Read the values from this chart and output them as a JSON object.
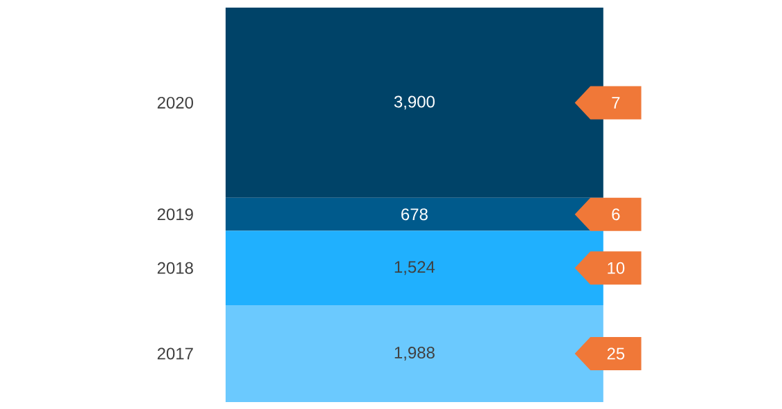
{
  "chart_data": {
    "type": "bar",
    "stacked": true,
    "categories": [
      null
    ],
    "series": [
      {
        "name": "2017",
        "color": "#6bc9fe",
        "values": [
          1988
        ],
        "value_labels": [
          "1,988"
        ]
      },
      {
        "name": "2018",
        "color": "#20b0fe",
        "values": [
          1524
        ],
        "value_labels": [
          "1,524"
        ]
      },
      {
        "name": "2019",
        "color": "#005a8c",
        "values": [
          678
        ],
        "value_labels": [
          "678"
        ]
      },
      {
        "name": "2020",
        "color": "#004368",
        "values": [
          3900
        ],
        "value_labels": [
          "3,900"
        ]
      }
    ],
    "annotations": [
      "25",
      "10",
      "6",
      "7"
    ]
  }
}
